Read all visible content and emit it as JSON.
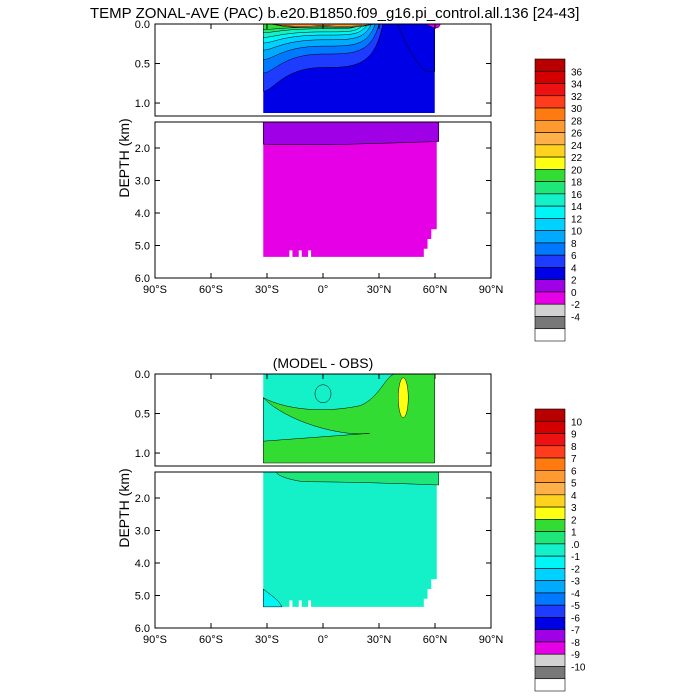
{
  "chart_data": [
    {
      "type": "heatmap",
      "title": "TEMP ZONAL-AVE (PAC) b.e20.B1850.f09_g16.pi_control.all.136 [24-43]",
      "ylabel": "DEPTH (km)",
      "xlabel": "",
      "x_ticks": [
        "90°S",
        "60°S",
        "30°S",
        "0°",
        "30°N",
        "60°N",
        "90°N"
      ],
      "y_ticks_upper": [
        "0.0",
        "0.5",
        "1.0"
      ],
      "y_ticks_lower": [
        "2.0",
        "3.0",
        "4.0",
        "5.0",
        "6.0"
      ],
      "xlim": [
        -90,
        90
      ],
      "ylim_km": [
        6.0,
        0.0
      ],
      "data_extent": {
        "lat_min": -32,
        "lat_max": 62,
        "depth_max_km": 5.35
      },
      "colorbar_labels": [
        "36",
        "34",
        "32",
        "30",
        "28",
        "26",
        "24",
        "22",
        "20",
        "18",
        "16",
        "14",
        "12",
        "10",
        "8",
        "6",
        "4",
        "2",
        "0",
        "-2",
        "-4"
      ],
      "colorbar_colors": [
        "#b80000",
        "#d40000",
        "#ee1111",
        "#ff3d1c",
        "#ff7a10",
        "#ff9a30",
        "#ffb048",
        "#ffd21e",
        "#ffff14",
        "#32dc32",
        "#1ee678",
        "#14f0c8",
        "#00f5f5",
        "#00d2ff",
        "#00aaff",
        "#0078ff",
        "#1e3cff",
        "#0000e6",
        "#a000e6",
        "#e600e6",
        "#d2d2d2",
        "#787878",
        "#ffffff"
      ],
      "structure": {
        "surface_warm_core_max_C": 30,
        "thermocline_band_upper_km_C": [
          [
            0.0,
            28
          ],
          [
            0.1,
            24
          ],
          [
            0.2,
            18
          ],
          [
            0.35,
            12
          ],
          [
            0.5,
            8
          ],
          [
            0.8,
            6
          ]
        ],
        "deep_layer_C": [
          [
            1.2,
            4
          ],
          [
            1.8,
            2
          ],
          [
            5.0,
            1
          ]
        ]
      }
    },
    {
      "type": "heatmap",
      "title": "(MODEL - OBS)",
      "ylabel": "DEPTH (km)",
      "xlabel": "",
      "x_ticks": [
        "90°S",
        "60°S",
        "30°S",
        "0°",
        "30°N",
        "60°N",
        "90°N"
      ],
      "y_ticks_upper": [
        "0.0",
        "0.5",
        "1.0"
      ],
      "y_ticks_lower": [
        "2.0",
        "3.0",
        "4.0",
        "5.0",
        "6.0"
      ],
      "xlim": [
        -90,
        90
      ],
      "ylim_km": [
        6.0,
        0.0
      ],
      "data_extent": {
        "lat_min": -32,
        "lat_max": 62,
        "depth_max_km": 5.35
      },
      "colorbar_labels": [
        "10",
        "9",
        "8",
        "7",
        "6",
        "5",
        "4",
        "3",
        "2",
        "1",
        ".0",
        "-1",
        "-2",
        "-3",
        "-4",
        "-5",
        "-6",
        "-7",
        "-8",
        "-9",
        "-10"
      ],
      "colorbar_colors": [
        "#b80000",
        "#d40000",
        "#ee1111",
        "#ff3d1c",
        "#ff7a10",
        "#ff9a30",
        "#ffb048",
        "#ffd21e",
        "#ffff14",
        "#32dc32",
        "#1ee678",
        "#14f0c8",
        "#00f5f5",
        "#00d2ff",
        "#00aaff",
        "#0078ff",
        "#1e3cff",
        "#0000e6",
        "#a000e6",
        "#e600e6",
        "#d2d2d2",
        "#787878",
        "#ffffff"
      ],
      "structure": {
        "background_bin": ".0 to 1 (near zero)",
        "positive_anomaly_region": "30°N–62°N, 0.3–1.3 km, 1 to 2",
        "peak_anomaly": "about 40°N near 0.2–0.5 km, 2 to 3",
        "negative_anomaly_region": "30°S–20°S below 4.8 km, -1 to 0"
      }
    }
  ]
}
